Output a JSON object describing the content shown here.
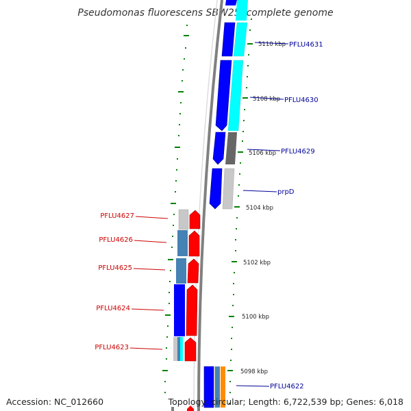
{
  "title": "Pseudomonas fluorescens SBW25, complete genome",
  "footer": {
    "accession": "Accession: NC_012660",
    "topology": "Topology: circular; Length: 6,722,539 bp; Genes: 6,018"
  },
  "colors": {
    "forward_gene": "#ff0000",
    "reverse_gene": "#0000ff",
    "forward_label": "#cc0000",
    "reverse_label": "#000099",
    "cyan_band": "#00ffff",
    "steel_band": "#4682b4",
    "grey_band": "#c8c8c8",
    "dark_grey_band": "#666666",
    "orange_band": "#ff8c00",
    "backbone": "#808080",
    "tick": "#008000"
  },
  "ticks": [
    "5110 kbp",
    "5108 kbp",
    "5106 kbp",
    "5104 kbp",
    "5102 kbp",
    "5100 kbp",
    "5098 kbp"
  ],
  "right_labels": [
    "PFLU4631",
    "PFLU4630",
    "PFLU4629",
    "prpD",
    "PFLU4622"
  ],
  "left_labels": [
    "PFLU4627",
    "PFLU4626",
    "PFLU4625",
    "PFLU4624",
    "PFLU4623"
  ]
}
